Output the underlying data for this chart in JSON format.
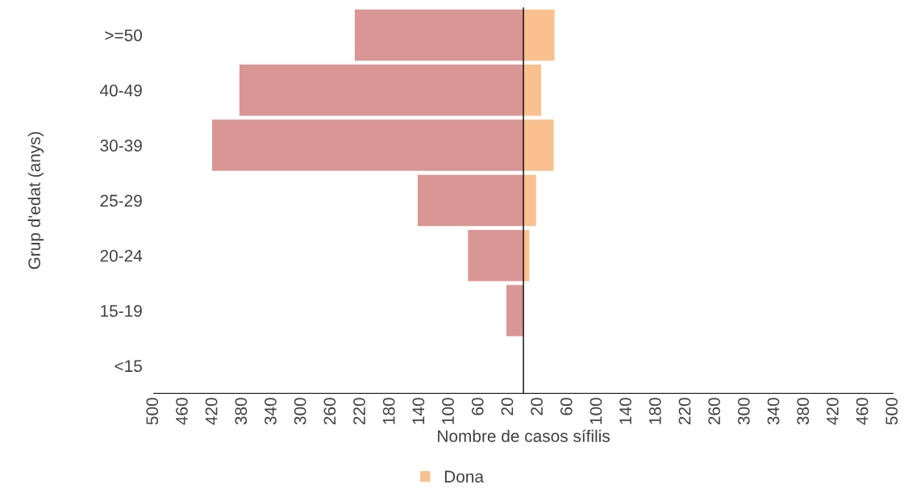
{
  "chart_data": {
    "type": "bar",
    "orientation": "horizontal",
    "stacked": true,
    "xlabel": "Nombre de casos sífilis",
    "ylabel": "Grup d'edat (anys)",
    "categories": [
      ">=50",
      "40-49",
      "30-39",
      "25-29",
      "20-24",
      "15-19",
      "<15"
    ],
    "series": [
      {
        "color": "#d99694",
        "values": [
          -228,
          -384,
          -421,
          -143,
          -75,
          -23,
          0
        ]
      },
      {
        "name": "Dona",
        "color": "#fac090",
        "values": [
          42,
          24,
          41,
          17,
          8,
          0,
          0
        ]
      }
    ],
    "xlim": [
      -500,
      500
    ],
    "xticks": [
      {
        "value": -500,
        "label": "500"
      },
      {
        "value": -460,
        "label": "460"
      },
      {
        "value": -420,
        "label": "420"
      },
      {
        "value": -380,
        "label": "380"
      },
      {
        "value": -340,
        "label": "340"
      },
      {
        "value": -300,
        "label": "300"
      },
      {
        "value": -260,
        "label": "260"
      },
      {
        "value": -220,
        "label": "220"
      },
      {
        "value": -180,
        "label": "180"
      },
      {
        "value": -140,
        "label": "140"
      },
      {
        "value": -100,
        "label": "100"
      },
      {
        "value": -60,
        "label": "60"
      },
      {
        "value": -20,
        "label": "20"
      },
      20,
      60,
      100,
      140,
      180,
      220,
      260,
      300,
      340,
      380,
      420,
      460,
      500
    ],
    "grid": false,
    "legend": "bottom"
  }
}
